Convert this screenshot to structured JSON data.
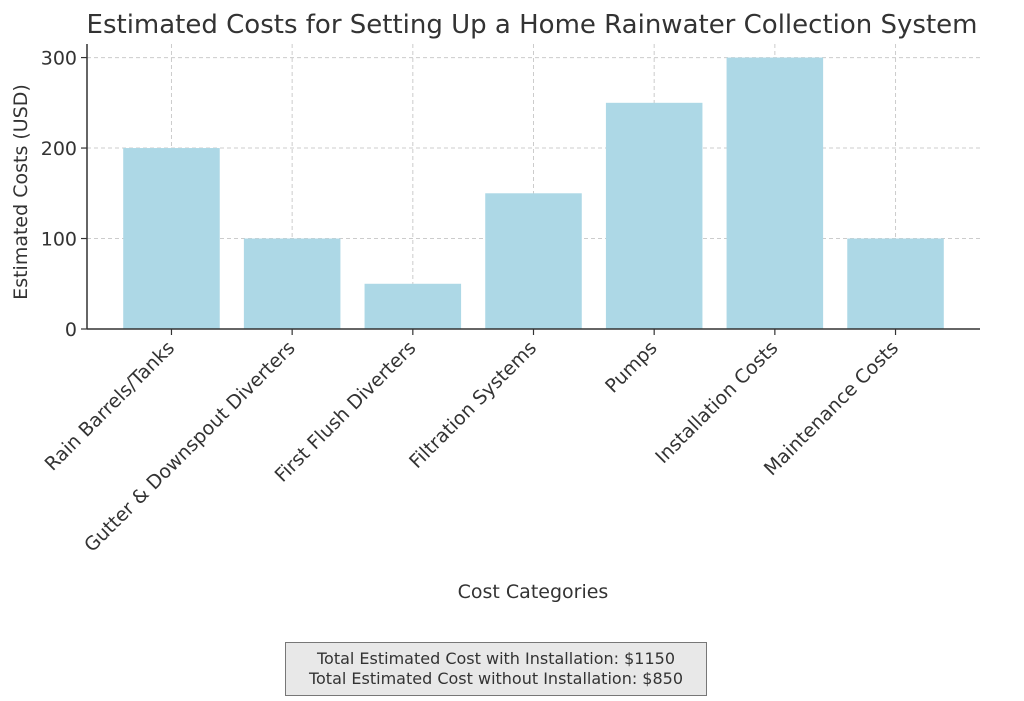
{
  "chart_data": {
    "type": "bar",
    "title": "Estimated Costs for Setting Up a Home Rainwater Collection System",
    "xlabel": "Cost Categories",
    "ylabel": "Estimated Costs (USD)",
    "categories": [
      "Rain Barrels/Tanks",
      "Gutter & Downspout Diverters",
      "First Flush Diverters",
      "Filtration Systems",
      "Pumps",
      "Installation Costs",
      "Maintenance Costs"
    ],
    "values": [
      200,
      100,
      50,
      150,
      250,
      300,
      100
    ],
    "ylim": [
      0,
      315
    ],
    "yticks": [
      0,
      100,
      200,
      300
    ],
    "grid": true,
    "bar_color": "#add8e6"
  },
  "annotation": {
    "line1": "Total Estimated Cost with Installation: $1150",
    "line2": "Total Estimated Cost without Installation: $850"
  }
}
